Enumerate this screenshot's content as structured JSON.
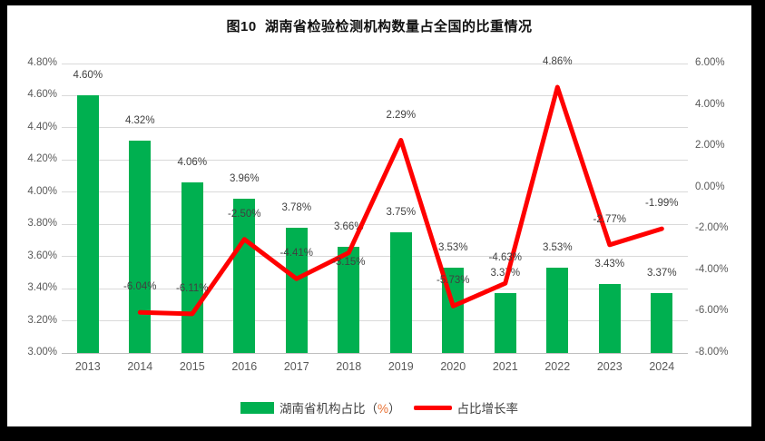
{
  "title": "图10  湖南省检验检测机构数量占全国的比重情况",
  "colors": {
    "bar": "#00B050",
    "line": "#FF0000",
    "grid": "#D9D9D9",
    "axis_line": "#BFBFBF",
    "tick_text": "#595959",
    "data_label_text": "#404040",
    "percent_accent": "#E97132",
    "frame_background": "#000000",
    "panel_background": "#FFFFFF"
  },
  "legend": {
    "bar_item": {
      "label_prefix": "湖南省机构占比（",
      "label_percent": "%",
      "label_suffix": "）"
    },
    "line_item": {
      "label": "占比增长率"
    }
  },
  "chart_data": {
    "type": "bar+line combo",
    "title": "图10  湖南省检验检测机构数量占全国的比重情况",
    "categories": [
      "2013",
      "2014",
      "2015",
      "2016",
      "2017",
      "2018",
      "2019",
      "2020",
      "2021",
      "2022",
      "2023",
      "2024"
    ],
    "series": [
      {
        "name": "湖南省机构占比（%）",
        "type": "bar",
        "axis": "left",
        "values": [
          4.6,
          4.32,
          4.06,
          3.96,
          3.78,
          3.66,
          3.75,
          3.53,
          3.37,
          3.53,
          3.43,
          3.37
        ],
        "labels": [
          "4.60%",
          "4.32%",
          "4.06%",
          "3.96%",
          "3.78%",
          "3.66%",
          "3.75%",
          "3.53%",
          "3.37%",
          "3.53%",
          "3.43%",
          "3.37%"
        ]
      },
      {
        "name": "占比增长率",
        "type": "line",
        "axis": "right",
        "values": [
          null,
          -6.04,
          -6.11,
          -2.5,
          -4.41,
          -3.15,
          2.29,
          -5.73,
          -4.63,
          4.86,
          -2.77,
          -1.99
        ],
        "labels": [
          "",
          "-6.04%",
          "-6.11%",
          "-2.50%",
          "-4.41%",
          "-3.15%",
          "2.29%",
          "-5.73%",
          "-4.63%",
          "4.86%",
          "-2.77%",
          "-1.99%"
        ],
        "label_side": [
          "",
          "above",
          "above",
          "above",
          "above",
          "below",
          "above",
          "above",
          "above",
          "above",
          "above",
          "above"
        ]
      }
    ],
    "left_axis": {
      "min": 3.0,
      "max": 4.8,
      "step": 0.2,
      "ticks": [
        "4.80%",
        "4.60%",
        "4.40%",
        "4.20%",
        "4.00%",
        "3.80%",
        "3.60%",
        "3.40%",
        "3.20%",
        "3.00%"
      ]
    },
    "right_axis": {
      "min": -8.0,
      "max": 6.0,
      "step": 2.0,
      "ticks": [
        "6.00%",
        "4.00%",
        "2.00%",
        "0.00%",
        "-2.00%",
        "-4.00%",
        "-6.00%",
        "-8.00%"
      ]
    },
    "grid": true,
    "legend_position": "bottom"
  }
}
